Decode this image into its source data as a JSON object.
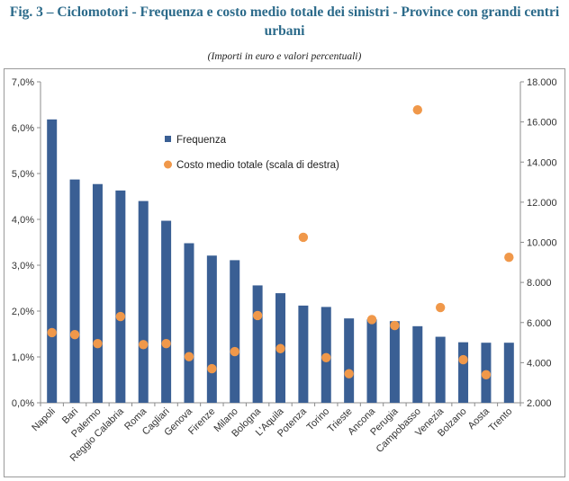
{
  "figure": {
    "title": "Fig. 3 – Ciclomotori - Frequenza e costo medio totale dei sinistri - Province con grandi centri urbani",
    "subtitle": "(Importi in euro e valori percentuali)"
  },
  "chart_data": {
    "type": "bar",
    "categories": [
      "Napoli",
      "Bari",
      "Palermo",
      "Reggio Calabria",
      "Roma",
      "Cagliari",
      "Genova",
      "Firenze",
      "Milano",
      "Bologna",
      "L'Aquila",
      "Potenza",
      "Torino",
      "Trieste",
      "Ancona",
      "Perugia",
      "Campobasso",
      "Venezia",
      "Bolzano",
      "Aosta",
      "Trento"
    ],
    "series": [
      {
        "name": "Frequenza",
        "type": "bar",
        "axis": "left",
        "color": "#3a5f94",
        "values": [
          6.18,
          4.87,
          4.77,
          4.63,
          4.4,
          3.97,
          3.48,
          3.21,
          3.11,
          2.56,
          2.39,
          2.12,
          2.09,
          1.84,
          1.82,
          1.78,
          1.67,
          1.44,
          1.32,
          1.31,
          1.31
        ]
      },
      {
        "name": "Costo medio totale (scala di destra)",
        "type": "scatter",
        "axis": "right",
        "color": "#f0984a",
        "values": [
          5500,
          5400,
          4950,
          6300,
          4900,
          4950,
          4300,
          3700,
          4550,
          6350,
          4700,
          10250,
          4250,
          3450,
          6150,
          5850,
          16600,
          6750,
          4150,
          3400,
          9250
        ]
      }
    ],
    "y_left": {
      "ylim": [
        0,
        7
      ],
      "ticks": [
        "0,0%",
        "1,0%",
        "2,0%",
        "3,0%",
        "4,0%",
        "5,0%",
        "6,0%",
        "7,0%"
      ]
    },
    "y_right": {
      "ylim": [
        2000,
        18000
      ],
      "ticks": [
        "2.000",
        "4.000",
        "6.000",
        "8.000",
        "10.000",
        "12.000",
        "14.000",
        "16.000",
        "18.000"
      ]
    },
    "grid": false,
    "legend_position": "upper-center"
  }
}
